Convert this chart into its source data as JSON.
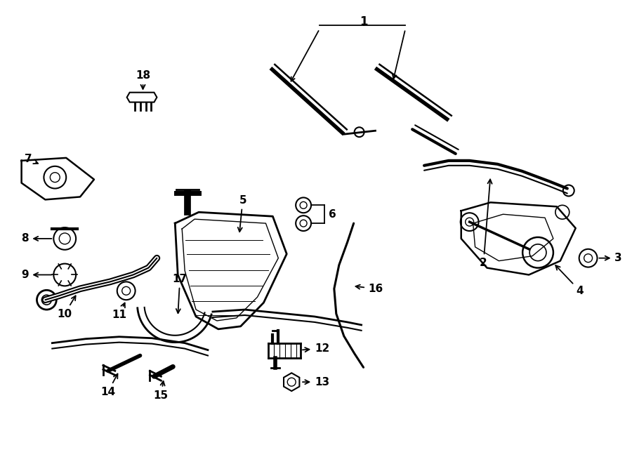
{
  "bg_color": "#ffffff",
  "line_color": "#000000",
  "figsize": [
    9.0,
    6.61
  ],
  "dpi": 100,
  "label_fontsize": 11
}
